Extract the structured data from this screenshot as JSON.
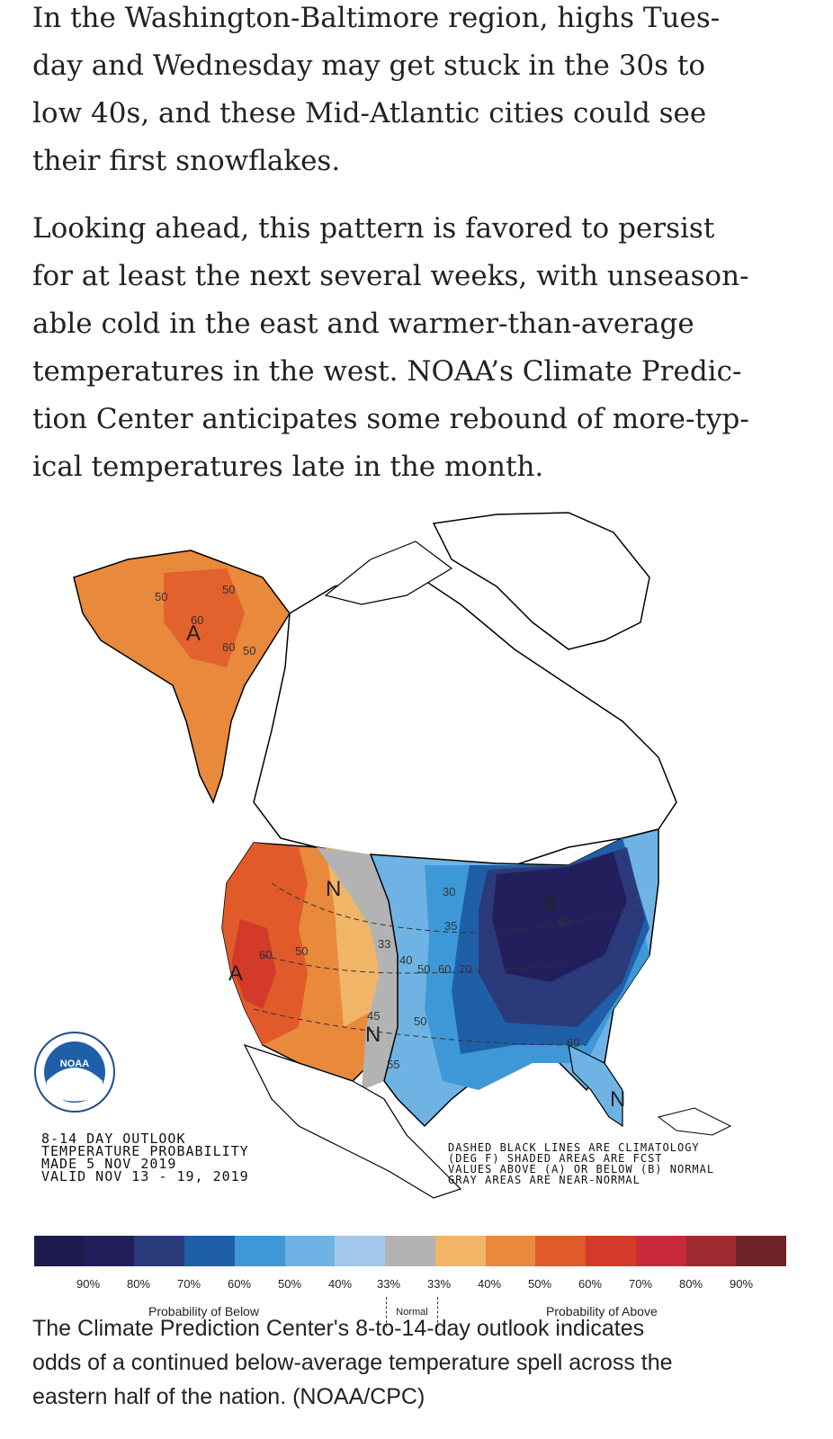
{
  "article": {
    "paragraph1": [
      "In the Washington-Baltimore region, highs Tues-",
      "day and Wednesday may get stuck in the 30s to",
      "low 40s, and these Mid-Atlantic cities could see",
      "their first snowflakes."
    ],
    "paragraph2": [
      "Looking ahead, this pattern is favored to persist",
      "for at least the next several weeks, with unseason-",
      "able cold in the east and warmer-than-average",
      "temperatures in the west. NOAA’s Climate Predic-",
      "tion Center anticipates some rebound of more-typ-",
      "ical temperatures late in the month."
    ]
  },
  "map": {
    "logo_text": "NOAA",
    "outlook_lines": [
      "8-14 DAY OUTLOOK",
      "TEMPERATURE PROBABILITY",
      "MADE   5 NOV 2019",
      "VALID   NOV 13 - 19, 2019"
    ],
    "legend_note_lines": [
      "DASHED BLACK LINES ARE CLIMATOLOGY",
      "(DEG F) SHADED AREAS ARE FCST",
      "VALUES ABOVE (A) OR BELOW (B) NORMAL",
      "GRAY AREAS ARE NEAR-NORMAL"
    ],
    "contour_labels": [
      "50",
      "50",
      "60",
      "60",
      "50",
      "60",
      "50",
      "30",
      "35",
      "33",
      "40",
      "50",
      "60",
      "70",
      "45",
      "50",
      "55",
      "60",
      "80"
    ],
    "region_letters": [
      "A",
      "A",
      "N",
      "N",
      "B",
      "N"
    ],
    "colorbar_colors": [
      "#1d1a4e",
      "#231f5c",
      "#2b3a7a",
      "#1f5fa8",
      "#3e98d8",
      "#6fb3e4",
      "#a3c9ea",
      "#b3b3b3",
      "#f1b567",
      "#e8893c",
      "#e05a2a",
      "#d43a2a",
      "#c92a3a",
      "#9e2a30",
      "#6e2428"
    ],
    "percent_labels": [
      "90%",
      "80%",
      "70%",
      "60%",
      "50%",
      "40%",
      "33%",
      "33%",
      "40%",
      "50%",
      "60%",
      "70%",
      "80%",
      "90%"
    ],
    "below_caption": "Probability of Below",
    "normal_caption": "Normal",
    "above_caption": "Probability of Above"
  },
  "caption": [
    "The Climate Prediction Center's 8-to-14-day outlook indicates",
    "odds of a continued below-average temperature spell across the",
    "eastern half of the nation.  (NOAA/CPC)"
  ]
}
